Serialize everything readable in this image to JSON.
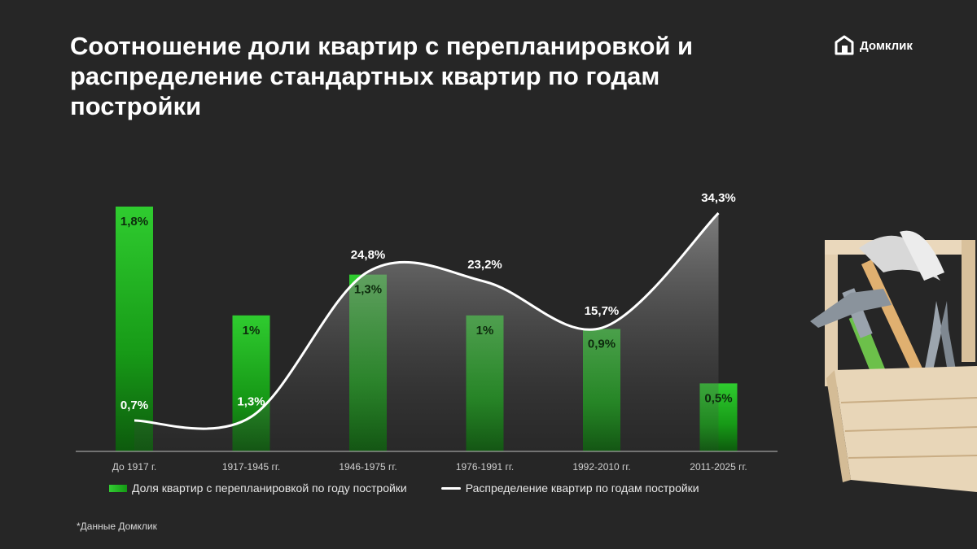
{
  "title": "Соотношение доли квартир с перепланировкой и распределение стандартных квартир по годам постройки",
  "brand": {
    "name": "Домклик",
    "icon": "house-logo-icon"
  },
  "chart_data": {
    "type": "bar",
    "categories": [
      "До 1917 г.",
      "1917-1945 гг.",
      "1946-1975 гг.",
      "1976-1991 гг.",
      "1992-2010 гг.",
      "2011-2025 гг."
    ],
    "series": [
      {
        "name": "Доля квартир с перепланировкой по году постройки",
        "type": "bar",
        "values": [
          1.8,
          1.0,
          1.3,
          1.0,
          0.9,
          0.5
        ],
        "labels": [
          "1,8%",
          "1%",
          "1,3%",
          "1%",
          "0,9%",
          "0,5%"
        ],
        "color": "#22b322"
      },
      {
        "name": "Распределение квартир по годам постройки",
        "type": "line",
        "values": [
          0.7,
          1.3,
          24.8,
          23.2,
          15.7,
          34.3
        ],
        "labels": [
          "0,7%",
          "1,3%",
          "24,8%",
          "23,2%",
          "15,7%",
          "34,3%"
        ],
        "color": "#ffffff"
      }
    ],
    "xlabel": "",
    "ylabel": "",
    "grid": false,
    "legend": "bottom"
  },
  "source_note": "*Данные Домклик",
  "illustration": "toolbox-with-tools-icon"
}
